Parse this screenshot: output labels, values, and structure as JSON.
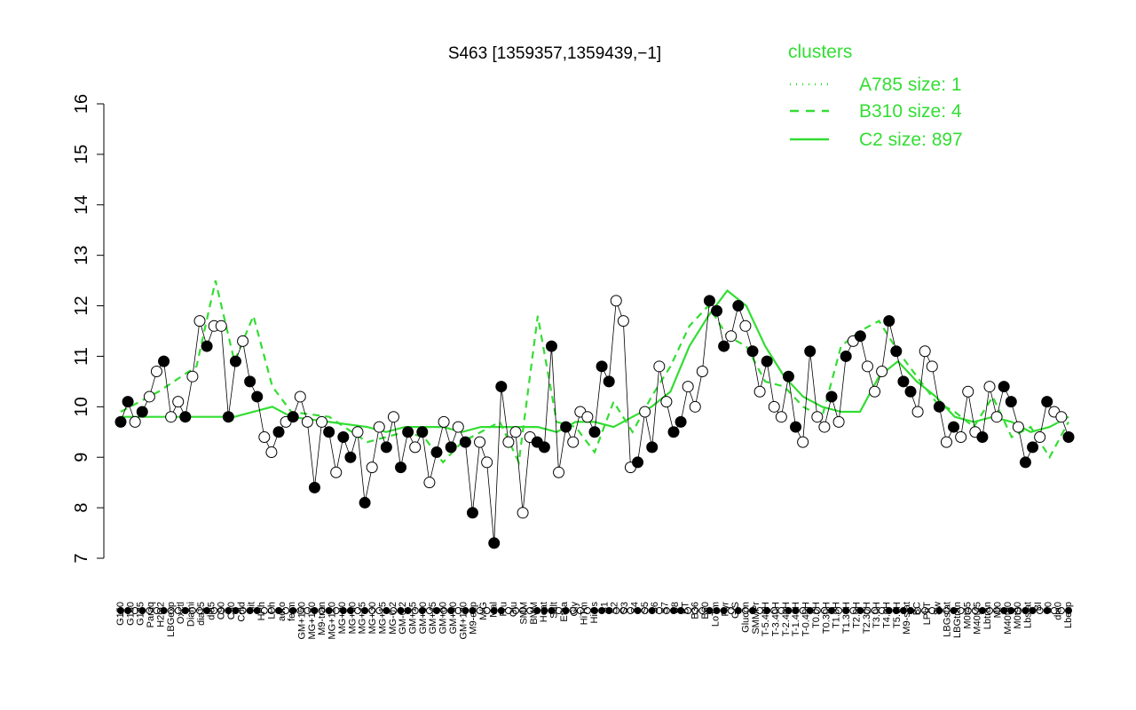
{
  "chart_data": {
    "type": "line",
    "title": "S463 [1359357,1359439,−1]",
    "xlabel": "",
    "ylabel": "",
    "ylim": [
      7,
      16
    ],
    "yticks": [
      7,
      8,
      9,
      10,
      11,
      12,
      13,
      14,
      15,
      16
    ],
    "grid": false,
    "legend": {
      "title": "clusters",
      "placement": "top-right",
      "color": "#33dd33",
      "entries": [
        {
          "label": "A785 size: 1",
          "style": "dotted"
        },
        {
          "label": "B310 size: 4",
          "style": "dashed"
        },
        {
          "label": "C2 size: 897",
          "style": "solid"
        }
      ]
    },
    "x_tick_labels": [
      "G150",
      "G180",
      "G135",
      "Paraq",
      "H2O2",
      "LBGexp",
      "Oxctl",
      "Diami",
      "dia15",
      "dia5",
      "C90",
      "C30",
      "Cold",
      "nit",
      "HPh",
      "LPh",
      "aero",
      "ferm",
      "GM+150",
      "MG+150",
      "M9-tran",
      "MG+120",
      "MG+90",
      "MG+60",
      "MG+45",
      "MG+30",
      "MG+15",
      "MG-0.2",
      "GM-0.2",
      "GM+15",
      "GM+30",
      "GM+45",
      "GM+60",
      "GM+90",
      "GM+120",
      "M9-exp",
      "M/G",
      "Mal",
      "Fru",
      "Glu",
      "SMM",
      "BMM",
      "Heat",
      "Salt",
      "Etha",
      "Gly",
      "HiTm",
      "HiOs",
      "S1",
      "S2",
      "S3",
      "S4",
      "S5",
      "S6",
      "S7",
      "S8",
      "BT",
      "B36",
      "B60",
      "LoTm",
      "Pyr",
      "G/S",
      "Glucon",
      "SMMPr",
      "T-5.40H",
      "T-3.40H",
      "T-2.40H",
      "T-1.40H",
      "T-0.40H",
      "T0.0H",
      "T0.30H",
      "T1.0H",
      "T1.30H",
      "T2.0H",
      "T2.30H",
      "T3.0H",
      "T4.0H",
      "T5.0H",
      "M9-stat",
      "BC",
      "LPhT",
      "Sw",
      "LBGstat",
      "LBGtran",
      "M0t45",
      "M40t45",
      "Lbtran",
      "Mt0",
      "M40t90",
      "M0t90",
      "Lbstat",
      "BI",
      "S0",
      "dia0",
      "Lbexp"
    ],
    "series": [
      {
        "name": "C2 size: 897",
        "style": "solid",
        "color": "#33dd33",
        "x": [
          0,
          4,
          8,
          12,
          16,
          18,
          22,
          26,
          28,
          30,
          32,
          34,
          36,
          38,
          40,
          42,
          44,
          46,
          48,
          50,
          52,
          54,
          56,
          58,
          60,
          62,
          64,
          66,
          68,
          70,
          72,
          74,
          76,
          78,
          80,
          82,
          84,
          86,
          88,
          90,
          92,
          94,
          96,
          98,
          100
        ],
        "values": [
          9.8,
          9.8,
          9.8,
          9.8,
          10.0,
          9.8,
          9.7,
          9.6,
          9.5,
          9.6,
          9.6,
          9.6,
          9.5,
          9.6,
          9.6,
          9.6,
          9.6,
          9.5,
          9.7,
          9.7,
          9.6,
          9.8,
          10.0,
          10.3,
          11.2,
          11.8,
          12.3,
          12.0,
          11.2,
          10.6,
          10.2,
          10.0,
          9.9,
          9.9,
          10.6,
          10.9,
          10.5,
          10.2,
          9.8,
          9.7,
          9.8,
          9.7,
          9.5,
          9.6,
          9.8
        ]
      },
      {
        "name": "B310 size: 4",
        "style": "dashed",
        "color": "#33dd33",
        "x": [
          0,
          4,
          8,
          10,
          12,
          14,
          16,
          18,
          22,
          26,
          28,
          30,
          32,
          34,
          36,
          38,
          40,
          42,
          44,
          46,
          48,
          50,
          52,
          54,
          56,
          58,
          60,
          62,
          64,
          66,
          68,
          70,
          72,
          74,
          76,
          78,
          80,
          82,
          84,
          86,
          88,
          90,
          92,
          94,
          96,
          98,
          100
        ],
        "values": [
          9.9,
          10.3,
          10.8,
          12.5,
          10.9,
          11.8,
          10.4,
          9.9,
          9.8,
          9.3,
          9.4,
          9.5,
          9.4,
          8.9,
          9.3,
          9.5,
          9.7,
          8.9,
          11.8,
          9.7,
          9.6,
          9.1,
          10.1,
          9.5,
          10.2,
          10.8,
          11.6,
          12.0,
          11.4,
          11.2,
          10.5,
          10.4,
          10.0,
          9.8,
          11.2,
          11.5,
          11.7,
          11.1,
          10.6,
          10.1,
          9.9,
          9.6,
          10.2,
          9.4,
          9.6,
          9.0,
          9.7
        ]
      }
    ],
    "points": [
      {
        "x": 0,
        "y": 9.7,
        "f": 1
      },
      {
        "x": 1,
        "y": 10.1,
        "f": 1
      },
      {
        "x": 2,
        "y": 9.7,
        "f": 0
      },
      {
        "x": 3,
        "y": 9.9,
        "f": 1
      },
      {
        "x": 4,
        "y": 10.2,
        "f": 0
      },
      {
        "x": 5,
        "y": 10.7,
        "f": 0
      },
      {
        "x": 6,
        "y": 10.9,
        "f": 1
      },
      {
        "x": 7,
        "y": 9.8,
        "f": 0
      },
      {
        "x": 8,
        "y": 10.1,
        "f": 0
      },
      {
        "x": 9,
        "y": 9.8,
        "f": 1
      },
      {
        "x": 10,
        "y": 10.6,
        "f": 0
      },
      {
        "x": 11,
        "y": 11.7,
        "f": 0
      },
      {
        "x": 12,
        "y": 11.2,
        "f": 1
      },
      {
        "x": 13,
        "y": 11.6,
        "f": 0
      },
      {
        "x": 14,
        "y": 11.6,
        "f": 0
      },
      {
        "x": 15,
        "y": 9.8,
        "f": 1
      },
      {
        "x": 16,
        "y": 10.9,
        "f": 1
      },
      {
        "x": 17,
        "y": 11.3,
        "f": 0
      },
      {
        "x": 18,
        "y": 10.5,
        "f": 1
      },
      {
        "x": 19,
        "y": 10.2,
        "f": 1
      },
      {
        "x": 20,
        "y": 9.4,
        "f": 0
      },
      {
        "x": 21,
        "y": 9.1,
        "f": 0
      },
      {
        "x": 22,
        "y": 9.5,
        "f": 1
      },
      {
        "x": 23,
        "y": 9.7,
        "f": 0
      },
      {
        "x": 24,
        "y": 9.8,
        "f": 1
      },
      {
        "x": 25,
        "y": 10.2,
        "f": 0
      },
      {
        "x": 26,
        "y": 9.7,
        "f": 0
      },
      {
        "x": 27,
        "y": 8.4,
        "f": 1
      },
      {
        "x": 28,
        "y": 9.7,
        "f": 0
      },
      {
        "x": 29,
        "y": 9.5,
        "f": 1
      },
      {
        "x": 30,
        "y": 8.7,
        "f": 0
      },
      {
        "x": 31,
        "y": 9.4,
        "f": 1
      },
      {
        "x": 32,
        "y": 9.0,
        "f": 1
      },
      {
        "x": 33,
        "y": 9.5,
        "f": 0
      },
      {
        "x": 34,
        "y": 8.1,
        "f": 1
      },
      {
        "x": 35,
        "y": 8.8,
        "f": 0
      },
      {
        "x": 36,
        "y": 9.6,
        "f": 0
      },
      {
        "x": 37,
        "y": 9.2,
        "f": 1
      },
      {
        "x": 38,
        "y": 9.8,
        "f": 0
      },
      {
        "x": 39,
        "y": 8.8,
        "f": 1
      },
      {
        "x": 40,
        "y": 9.5,
        "f": 1
      },
      {
        "x": 41,
        "y": 9.2,
        "f": 0
      },
      {
        "x": 42,
        "y": 9.5,
        "f": 1
      },
      {
        "x": 43,
        "y": 8.5,
        "f": 0
      },
      {
        "x": 44,
        "y": 9.1,
        "f": 1
      },
      {
        "x": 45,
        "y": 9.7,
        "f": 0
      },
      {
        "x": 46,
        "y": 9.2,
        "f": 1
      },
      {
        "x": 47,
        "y": 9.6,
        "f": 0
      },
      {
        "x": 48,
        "y": 9.3,
        "f": 1
      },
      {
        "x": 49,
        "y": 7.9,
        "f": 1
      },
      {
        "x": 50,
        "y": 9.3,
        "f": 0
      },
      {
        "x": 51,
        "y": 8.9,
        "f": 0
      },
      {
        "x": 52,
        "y": 7.3,
        "f": 1
      },
      {
        "x": 53,
        "y": 10.4,
        "f": 1
      },
      {
        "x": 54,
        "y": 9.3,
        "f": 0
      },
      {
        "x": 55,
        "y": 9.5,
        "f": 0
      },
      {
        "x": 56,
        "y": 7.9,
        "f": 0
      },
      {
        "x": 57,
        "y": 9.4,
        "f": 0
      },
      {
        "x": 58,
        "y": 9.3,
        "f": 1
      },
      {
        "x": 59,
        "y": 9.2,
        "f": 1
      },
      {
        "x": 60,
        "y": 11.2,
        "f": 1
      },
      {
        "x": 61,
        "y": 8.7,
        "f": 0
      },
      {
        "x": 62,
        "y": 9.6,
        "f": 1
      },
      {
        "x": 63,
        "y": 9.3,
        "f": 0
      },
      {
        "x": 64,
        "y": 9.9,
        "f": 0
      },
      {
        "x": 65,
        "y": 9.8,
        "f": 0
      },
      {
        "x": 66,
        "y": 9.5,
        "f": 1
      },
      {
        "x": 67,
        "y": 10.8,
        "f": 1
      },
      {
        "x": 68,
        "y": 10.5,
        "f": 1
      },
      {
        "x": 69,
        "y": 12.1,
        "f": 0
      },
      {
        "x": 70,
        "y": 11.7,
        "f": 0
      },
      {
        "x": 71,
        "y": 8.8,
        "f": 0
      },
      {
        "x": 72,
        "y": 8.9,
        "f": 1
      },
      {
        "x": 73,
        "y": 9.9,
        "f": 0
      },
      {
        "x": 74,
        "y": 9.2,
        "f": 1
      },
      {
        "x": 75,
        "y": 10.8,
        "f": 0
      },
      {
        "x": 76,
        "y": 10.1,
        "f": 0
      },
      {
        "x": 77,
        "y": 9.5,
        "f": 1
      },
      {
        "x": 78,
        "y": 9.7,
        "f": 1
      },
      {
        "x": 79,
        "y": 10.4,
        "f": 0
      },
      {
        "x": 80,
        "y": 10.0,
        "f": 0
      },
      {
        "x": 81,
        "y": 10.7,
        "f": 0
      },
      {
        "x": 82,
        "y": 12.1,
        "f": 1
      },
      {
        "x": 83,
        "y": 11.9,
        "f": 1
      },
      {
        "x": 84,
        "y": 11.2,
        "f": 1
      },
      {
        "x": 85,
        "y": 11.4,
        "f": 0
      },
      {
        "x": 86,
        "y": 12.0,
        "f": 1
      },
      {
        "x": 87,
        "y": 11.6,
        "f": 0
      },
      {
        "x": 88,
        "y": 11.1,
        "f": 1
      },
      {
        "x": 89,
        "y": 10.3,
        "f": 0
      },
      {
        "x": 90,
        "y": 10.9,
        "f": 1
      },
      {
        "x": 91,
        "y": 10.0,
        "f": 0
      },
      {
        "x": 92,
        "y": 9.8,
        "f": 0
      },
      {
        "x": 93,
        "y": 10.6,
        "f": 1
      },
      {
        "x": 94,
        "y": 9.6,
        "f": 1
      },
      {
        "x": 95,
        "y": 9.3,
        "f": 0
      },
      {
        "x": 96,
        "y": 11.1,
        "f": 1
      },
      {
        "x": 97,
        "y": 9.8,
        "f": 0
      },
      {
        "x": 98,
        "y": 9.6,
        "f": 0
      },
      {
        "x": 99,
        "y": 10.2,
        "f": 1
      },
      {
        "x": 100,
        "y": 9.7,
        "f": 0
      },
      {
        "x": 101,
        "y": 11.0,
        "f": 1
      },
      {
        "x": 102,
        "y": 11.3,
        "f": 0
      },
      {
        "x": 103,
        "y": 11.4,
        "f": 1
      },
      {
        "x": 104,
        "y": 10.8,
        "f": 0
      },
      {
        "x": 105,
        "y": 10.3,
        "f": 0
      },
      {
        "x": 106,
        "y": 10.7,
        "f": 0
      },
      {
        "x": 107,
        "y": 11.7,
        "f": 1
      },
      {
        "x": 108,
        "y": 11.1,
        "f": 1
      },
      {
        "x": 109,
        "y": 10.5,
        "f": 1
      },
      {
        "x": 110,
        "y": 10.3,
        "f": 1
      },
      {
        "x": 111,
        "y": 9.9,
        "f": 0
      },
      {
        "x": 112,
        "y": 11.1,
        "f": 0
      },
      {
        "x": 113,
        "y": 10.8,
        "f": 0
      },
      {
        "x": 114,
        "y": 10.0,
        "f": 1
      },
      {
        "x": 115,
        "y": 9.3,
        "f": 0
      },
      {
        "x": 116,
        "y": 9.6,
        "f": 1
      },
      {
        "x": 117,
        "y": 9.4,
        "f": 0
      },
      {
        "x": 118,
        "y": 10.3,
        "f": 0
      },
      {
        "x": 119,
        "y": 9.5,
        "f": 0
      },
      {
        "x": 120,
        "y": 9.4,
        "f": 1
      },
      {
        "x": 121,
        "y": 10.4,
        "f": 0
      },
      {
        "x": 122,
        "y": 9.8,
        "f": 0
      },
      {
        "x": 123,
        "y": 10.4,
        "f": 1
      },
      {
        "x": 124,
        "y": 10.1,
        "f": 1
      },
      {
        "x": 125,
        "y": 9.6,
        "f": 0
      },
      {
        "x": 126,
        "y": 8.9,
        "f": 1
      },
      {
        "x": 127,
        "y": 9.2,
        "f": 1
      },
      {
        "x": 128,
        "y": 9.4,
        "f": 0
      },
      {
        "x": 129,
        "y": 10.1,
        "f": 1
      },
      {
        "x": 130,
        "y": 9.9,
        "f": 0
      },
      {
        "x": 131,
        "y": 9.8,
        "f": 0
      },
      {
        "x": 132,
        "y": 9.4,
        "f": 1
      }
    ]
  }
}
